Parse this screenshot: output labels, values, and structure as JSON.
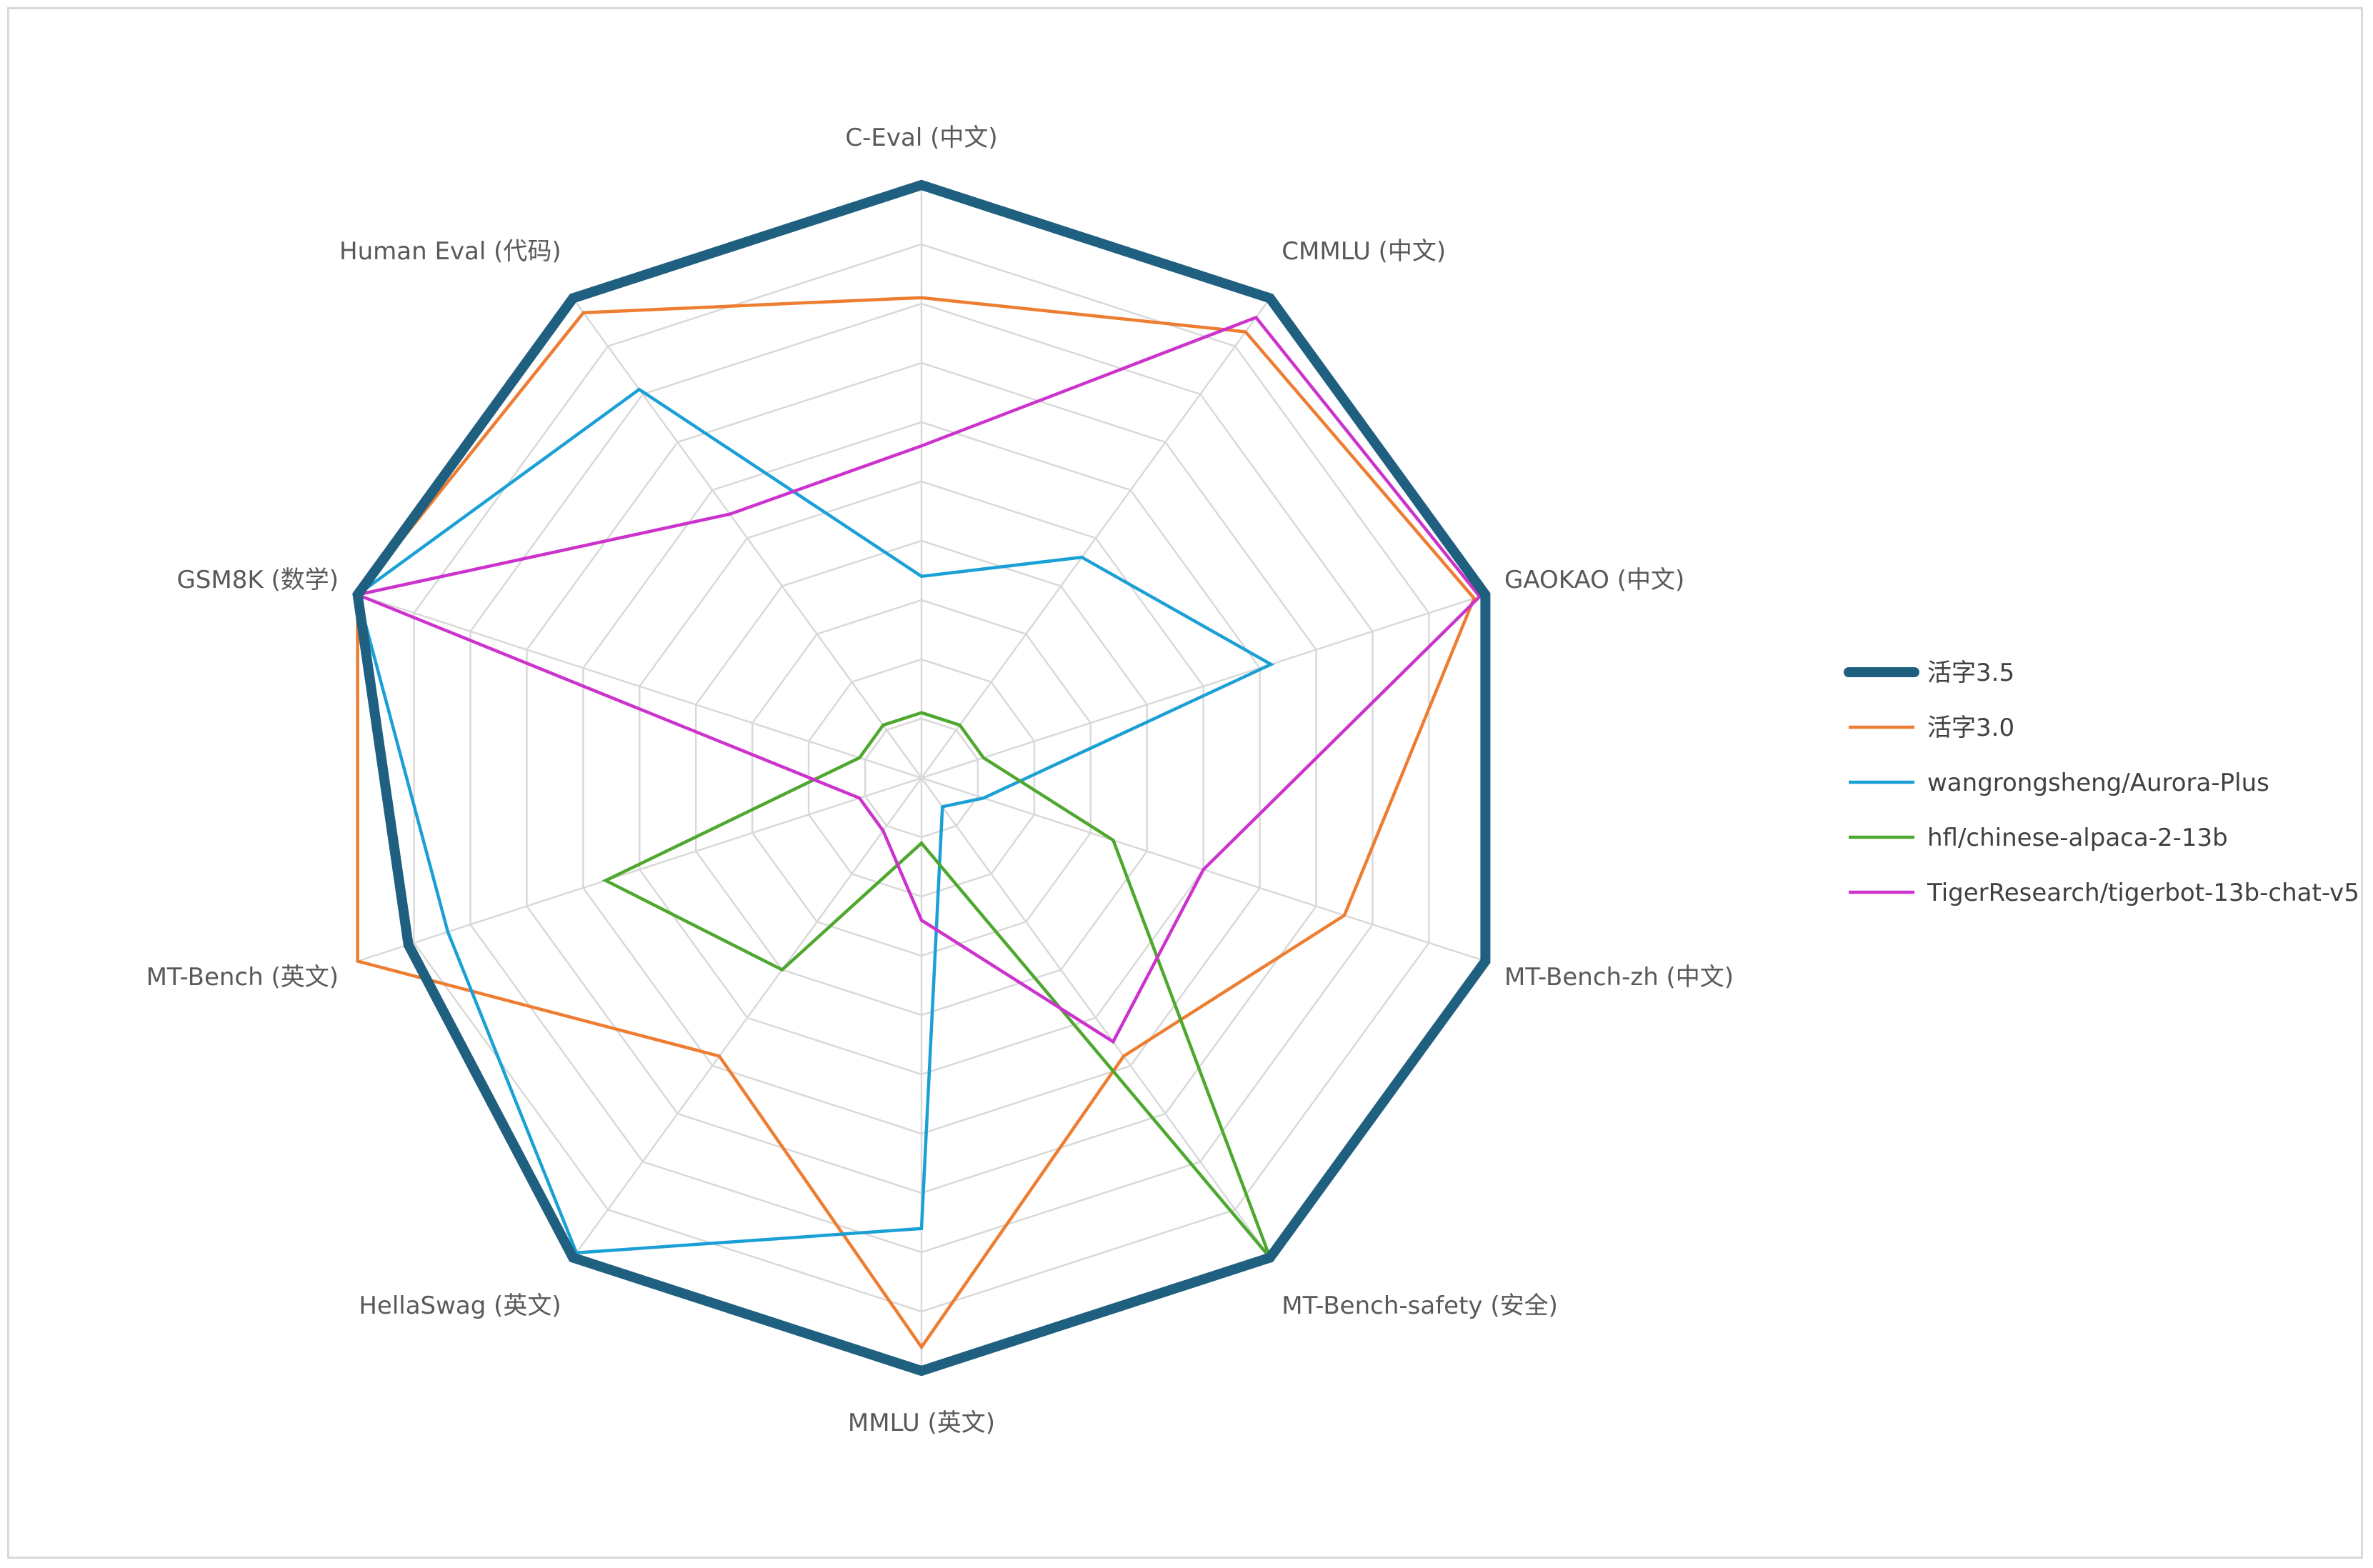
{
  "chart_data": {
    "type": "radar",
    "title": "",
    "axes": [
      "C-Eval (中文)",
      "CMMLU (中文)",
      "GAOKAO (中文)",
      "MT-Bench-zh (中文)",
      "MT-Bench-safety (安全)",
      "MMLU (英文)",
      "HellaSwag (英文)",
      "MT-Bench (英文)",
      "GSM8K (数学)",
      "Human Eval (代码)"
    ],
    "rlim": [
      0,
      1
    ],
    "grid_rings": 9,
    "legend_position": "right",
    "series": [
      {
        "name": "活字3.5",
        "color": "#1f5f7f",
        "width": 14,
        "values": [
          1.0,
          1.0,
          1.0,
          1.0,
          1.0,
          1.0,
          1.0,
          0.91,
          1.0,
          1.0
        ]
      },
      {
        "name": "活字3.0",
        "color": "#ed7d31",
        "width": 4.5,
        "values": [
          0.81,
          0.93,
          0.98,
          0.75,
          0.58,
          0.96,
          0.58,
          1.0,
          1.0,
          0.97
        ]
      },
      {
        "name": "wangrongsheng/Aurora-Plus",
        "color": "#1ba0d6",
        "width": 4.5,
        "values": [
          0.34,
          0.46,
          0.62,
          0.11,
          0.06,
          0.76,
          0.99,
          0.84,
          1.0,
          0.81
        ]
      },
      {
        "name": "hfl/chinese-alpaca-2-13b",
        "color": "#4ea72e",
        "width": 4.5,
        "values": [
          0.11,
          0.11,
          0.11,
          0.34,
          1.0,
          0.11,
          0.4,
          0.56,
          0.11,
          0.11
        ]
      },
      {
        "name": "TigerResearch/tigerbot-13b-chat-v5",
        "color": "#cc33cc",
        "width": 4.5,
        "values": [
          0.56,
          0.96,
          0.99,
          0.5,
          0.55,
          0.24,
          0.11,
          0.11,
          1.0,
          0.55
        ]
      }
    ]
  }
}
